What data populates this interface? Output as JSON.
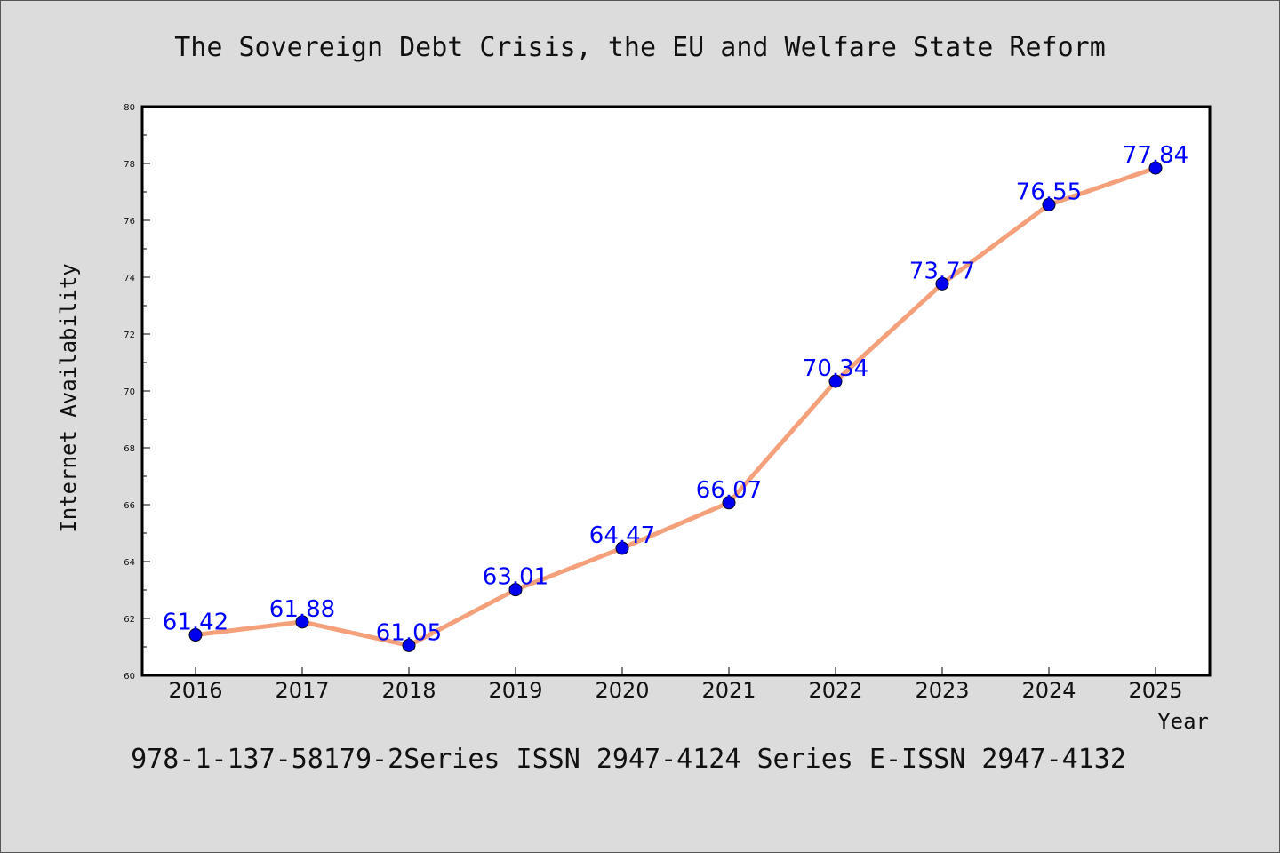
{
  "chart_data": {
    "type": "line",
    "title": "The Sovereign Debt Crisis, the EU and Welfare State Reform",
    "xlabel": "Year",
    "ylabel": "Internet Availability",
    "x": [
      "2016",
      "2017",
      "2018",
      "2019",
      "2020",
      "2021",
      "2022",
      "2023",
      "2024",
      "2025"
    ],
    "series": [
      {
        "values": [
          61.42,
          61.88,
          61.05,
          63.01,
          64.47,
          66.07,
          70.34,
          73.77,
          76.55,
          77.84
        ]
      }
    ],
    "data_labels": [
      "61.42",
      "61.88",
      "61.05",
      "63.01",
      "64.47",
      "66.07",
      "70.34",
      "73.77",
      "76.55",
      "77.84"
    ],
    "ylim": [
      60,
      80
    ],
    "yticks": [
      "60",
      "62",
      "64",
      "66",
      "68",
      "70",
      "72",
      "74",
      "76",
      "78",
      "80"
    ],
    "grid": false,
    "legend": "none",
    "colors": {
      "line": "#f4a07a",
      "marker": "#0000ee",
      "label": "#0000ff",
      "background": "#dcdcdc",
      "plot_background": "#ffffff"
    }
  },
  "footer": "978-1-137-58179-2Series ISSN 2947-4124 Series E-ISSN 2947-4132"
}
